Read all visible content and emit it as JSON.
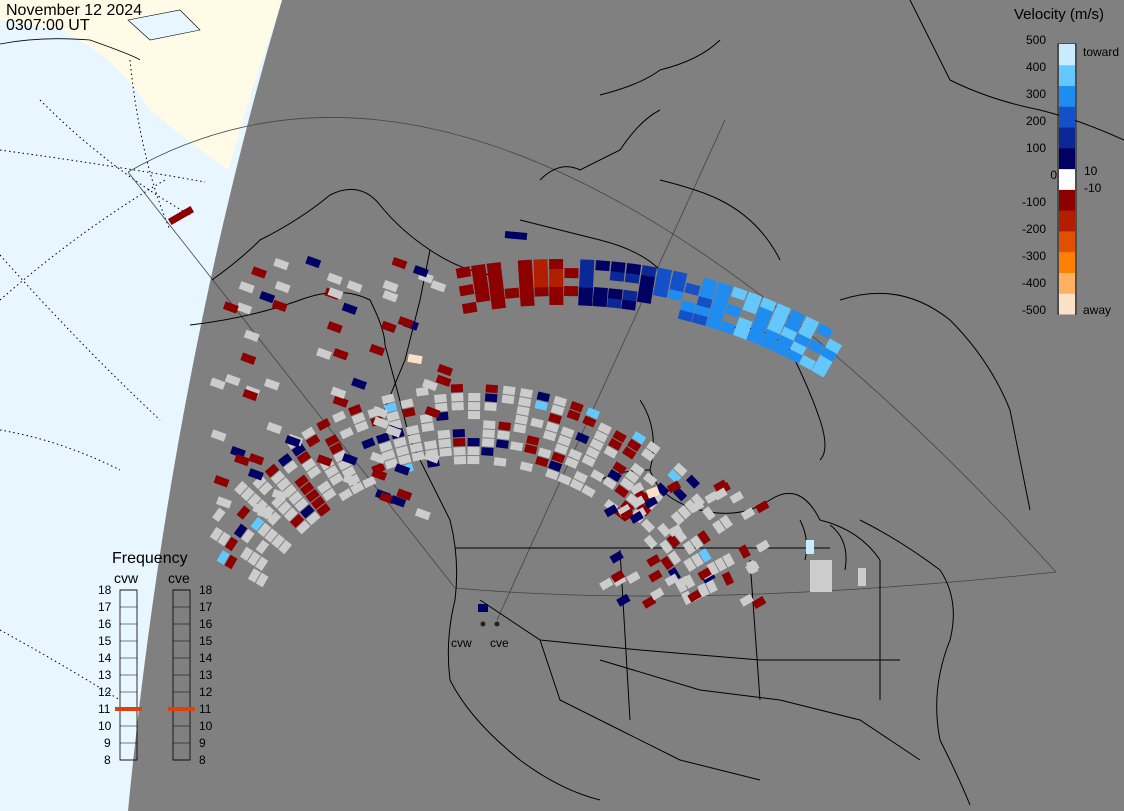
{
  "header": {
    "date": "November 12 2024",
    "time": "0307:00 UT"
  },
  "colorbar": {
    "title": "Velocity (m/s)",
    "tick_labels": [
      "500",
      "400",
      "300",
      "200",
      "100",
      "10",
      "0",
      "-10",
      "-100",
      "-200",
      "-300",
      "-400",
      "-500"
    ],
    "toward_label": "toward",
    "away_label": "away",
    "colors": [
      "#fde0c8",
      "#ffb060",
      "#ff8000",
      "#e05000",
      "#b41e00",
      "#8c0000",
      "#ffffff",
      "#000064",
      "#0a2896",
      "#1450c8",
      "#1e8cf0",
      "#64c8ff",
      "#c8ebff"
    ]
  },
  "frequency_panel": {
    "title": "Frequency",
    "radars": [
      {
        "code": "cvw",
        "frequency_mhz": 11
      },
      {
        "code": "cve",
        "frequency_mhz": 11
      }
    ],
    "scale_labels": [
      "18",
      "17",
      "16",
      "15",
      "14",
      "13",
      "12",
      "11",
      "10",
      "9",
      "8"
    ],
    "indicator_color": "#e04010"
  },
  "radar_sites": [
    {
      "code": "cvw"
    },
    {
      "code": "cve"
    }
  ],
  "colors": {
    "background": "#808080",
    "ocean": "#e8f6ff",
    "land": "#fffbe6",
    "low_velocity": "#cccccc",
    "coastline": "#000000"
  }
}
